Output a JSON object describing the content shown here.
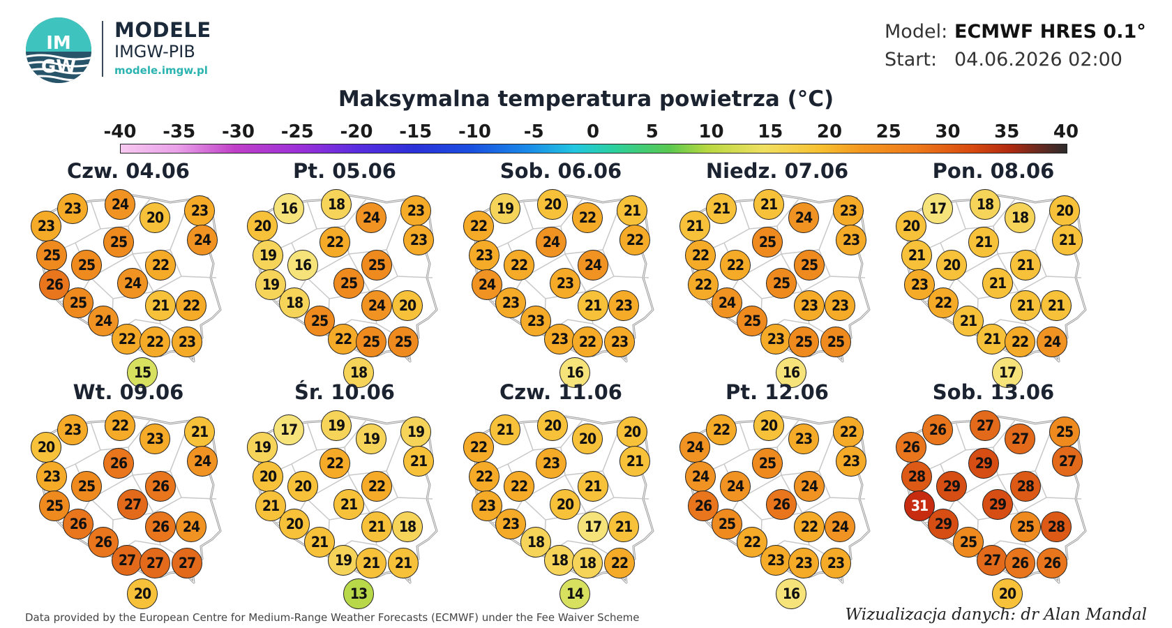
{
  "header": {
    "logo_text": "IMGW",
    "brand_line1": "MODELE",
    "brand_line2": "IMGW-PIB",
    "brand_url": "modele.imgw.pl",
    "model_label": "Model:",
    "model_value": "ECMWF HRES 0.1°",
    "start_label": "Start:",
    "start_value": "04.06.2026 02:00"
  },
  "title": "Maksymalna temperatura powietrza (°C)",
  "colorbar": {
    "ticks": [
      "-40",
      "-35",
      "-30",
      "-25",
      "-20",
      "-15",
      "-10",
      "-5",
      "0",
      "5",
      "10",
      "15",
      "20",
      "25",
      "30",
      "35",
      "40"
    ],
    "min": -40,
    "max": 40
  },
  "days": [
    {
      "label": "Czw. 04.06",
      "values": [
        23,
        23,
        24,
        20,
        23,
        25,
        24,
        25,
        25,
        22,
        26,
        24,
        25,
        21,
        22,
        24,
        22,
        22,
        23,
        15
      ]
    },
    {
      "label": "Pt. 05.06",
      "values": [
        20,
        16,
        18,
        24,
        23,
        22,
        23,
        19,
        16,
        25,
        19,
        25,
        18,
        24,
        20,
        25,
        22,
        25,
        25,
        18
      ]
    },
    {
      "label": "Sob. 06.06",
      "values": [
        22,
        19,
        20,
        22,
        21,
        24,
        22,
        23,
        22,
        24,
        24,
        23,
        23,
        21,
        23,
        23,
        23,
        22,
        23,
        16
      ]
    },
    {
      "label": "Niedz. 07.06",
      "values": [
        21,
        21,
        21,
        24,
        23,
        25,
        23,
        22,
        22,
        25,
        22,
        25,
        24,
        23,
        23,
        25,
        23,
        25,
        25,
        16
      ]
    },
    {
      "label": "Pon. 08.06",
      "values": [
        20,
        17,
        18,
        18,
        20,
        21,
        21,
        21,
        20,
        21,
        23,
        21,
        22,
        21,
        21,
        21,
        21,
        22,
        24,
        17
      ]
    },
    {
      "label": "Wt. 09.06",
      "values": [
        20,
        23,
        22,
        23,
        21,
        26,
        24,
        23,
        25,
        26,
        25,
        27,
        26,
        26,
        24,
        26,
        27,
        27,
        27,
        20
      ]
    },
    {
      "label": "Śr. 10.06",
      "values": [
        19,
        17,
        19,
        19,
        19,
        22,
        21,
        20,
        20,
        22,
        21,
        21,
        20,
        21,
        18,
        21,
        19,
        21,
        21,
        13
      ]
    },
    {
      "label": "Czw. 11.06",
      "values": [
        22,
        21,
        20,
        20,
        20,
        23,
        21,
        22,
        22,
        21,
        23,
        20,
        23,
        17,
        21,
        18,
        18,
        18,
        22,
        14
      ]
    },
    {
      "label": "Pt. 12.06",
      "values": [
        24,
        22,
        20,
        23,
        22,
        25,
        23,
        24,
        24,
        24,
        26,
        26,
        25,
        22,
        24,
        22,
        23,
        23,
        23,
        16
      ]
    },
    {
      "label": "Sob. 13.06",
      "values": [
        26,
        26,
        27,
        27,
        25,
        29,
        27,
        28,
        29,
        28,
        31,
        29,
        29,
        25,
        28,
        25,
        27,
        26,
        26,
        20
      ]
    }
  ],
  "footer": {
    "source": "Data provided by the European Centre for Medium-Range Weather Forecasts (ECMWF) under the Fee Waiver Scheme",
    "credit": "Wizualizacja danych: dr Alan Mandal"
  }
}
